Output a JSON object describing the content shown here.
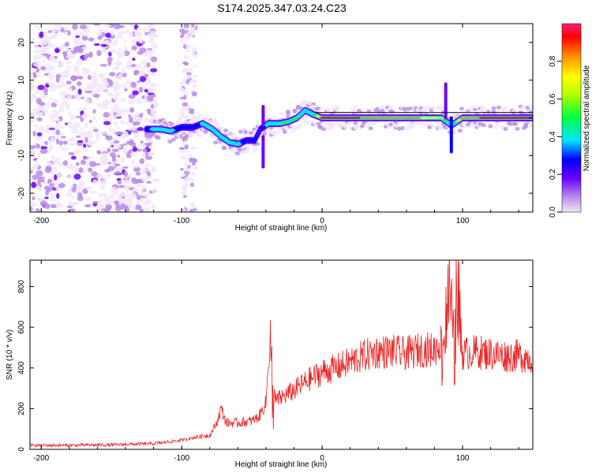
{
  "title": "S174.2025.347.03.24.C23",
  "chart_data": [
    {
      "type": "heatmap",
      "xlabel": "Height of straight line (km)",
      "ylabel": "Frequency (Hz)",
      "xlim": [
        -208,
        150
      ],
      "ylim": [
        -25,
        25
      ],
      "xticks": [
        -200,
        -100,
        0,
        100
      ],
      "yticks": [
        -20,
        -10,
        0,
        10,
        20
      ],
      "colorbar": {
        "label": "Normalized spectral amplitude",
        "range": [
          0,
          1
        ],
        "ticks": [
          0.0,
          0.2,
          0.4,
          0.6,
          0.8
        ]
      },
      "ridge": [
        {
          "x": -125,
          "y": -3,
          "amp": 0.35
        },
        {
          "x": -115,
          "y": -3,
          "amp": 0.45
        },
        {
          "x": -108,
          "y": -3.5,
          "amp": 0.4
        },
        {
          "x": -100,
          "y": -2.5,
          "amp": 0.35
        },
        {
          "x": -92,
          "y": -2.5,
          "amp": 0.3
        },
        {
          "x": -85,
          "y": -1.5,
          "amp": 0.4
        },
        {
          "x": -78,
          "y": -3,
          "amp": 0.4
        },
        {
          "x": -72,
          "y": -5,
          "amp": 0.4
        },
        {
          "x": -66,
          "y": -6.5,
          "amp": 0.45
        },
        {
          "x": -60,
          "y": -7,
          "amp": 0.4
        },
        {
          "x": -54,
          "y": -6,
          "amp": 0.35
        },
        {
          "x": -48,
          "y": -6,
          "amp": 0.3
        },
        {
          "x": -44,
          "y": -3,
          "amp": 0.25
        },
        {
          "x": -38,
          "y": -1.5,
          "amp": 0.45
        },
        {
          "x": -30,
          "y": -1.5,
          "amp": 0.5
        },
        {
          "x": -24,
          "y": -1,
          "amp": 0.5
        },
        {
          "x": -18,
          "y": 0,
          "amp": 0.5
        },
        {
          "x": -12,
          "y": 2,
          "amp": 0.4
        },
        {
          "x": -7,
          "y": 1,
          "amp": 0.45
        },
        {
          "x": 0,
          "y": 0,
          "amp": 0.95
        },
        {
          "x": 20,
          "y": 0,
          "amp": 0.95
        },
        {
          "x": 40,
          "y": 0,
          "amp": 0.9
        },
        {
          "x": 60,
          "y": 0,
          "amp": 0.9
        },
        {
          "x": 75,
          "y": 0,
          "amp": 0.8
        },
        {
          "x": 85,
          "y": 0,
          "amp": 0.7
        },
        {
          "x": 92,
          "y": -2,
          "amp": 0.35
        },
        {
          "x": 100,
          "y": 0,
          "amp": 0.9
        },
        {
          "x": 120,
          "y": 0,
          "amp": 0.95
        },
        {
          "x": 140,
          "y": 0,
          "amp": 0.95
        },
        {
          "x": 150,
          "y": 0,
          "amp": 0.95
        }
      ]
    },
    {
      "type": "line",
      "xlabel": "Height of straight line (km)",
      "ylabel": "SNR (10 * v/v)",
      "xlim": [
        -208,
        150
      ],
      "ylim": [
        0,
        930
      ],
      "xticks": [
        -200,
        -100,
        0,
        100
      ],
      "yticks": [
        0,
        200,
        400,
        600,
        800
      ],
      "series": [
        {
          "name": "SNR",
          "color": "#ee2222",
          "x": [
            -208,
            -180,
            -150,
            -120,
            -100,
            -90,
            -80,
            -75,
            -72,
            -68,
            -60,
            -50,
            -45,
            -40,
            -37,
            -35,
            -33,
            -30,
            -25,
            -20,
            -10,
            0,
            10,
            20,
            30,
            40,
            50,
            60,
            70,
            80,
            85,
            88,
            90,
            92,
            94,
            96,
            98,
            100,
            110,
            120,
            130,
            140,
            150
          ],
          "y": [
            20,
            20,
            22,
            28,
            45,
            60,
            70,
            130,
            200,
            130,
            130,
            140,
            160,
            230,
            560,
            250,
            240,
            250,
            270,
            290,
            340,
            380,
            400,
            430,
            460,
            480,
            480,
            470,
            490,
            490,
            530,
            580,
            820,
            700,
            350,
            850,
            620,
            470,
            480,
            470,
            460,
            460,
            450
          ]
        }
      ]
    }
  ]
}
